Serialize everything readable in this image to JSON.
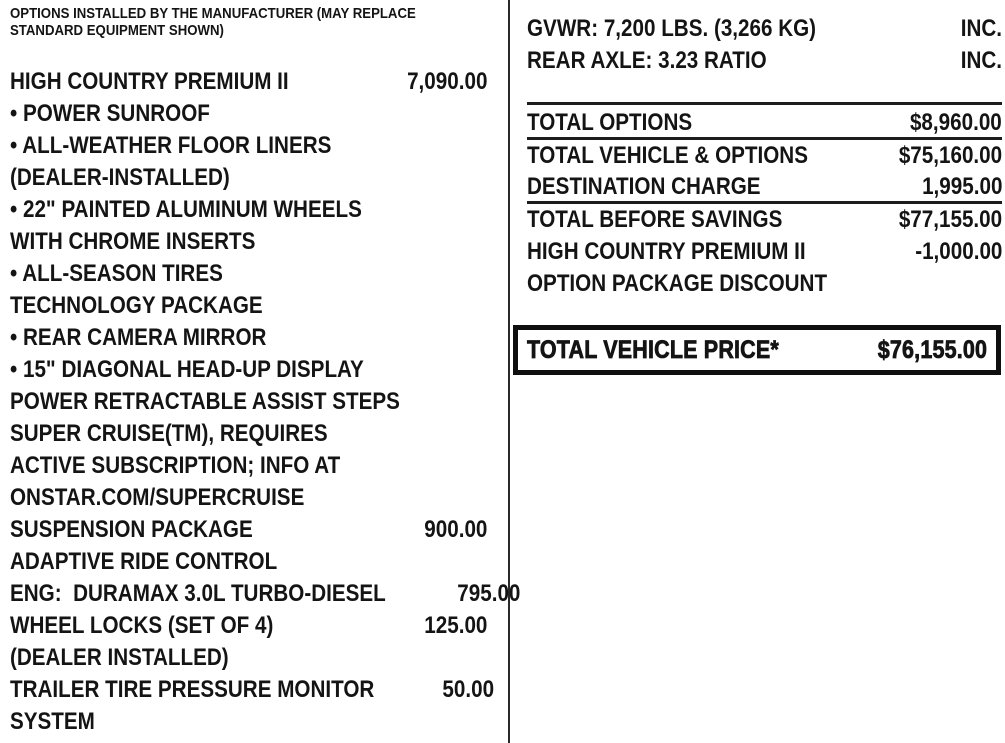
{
  "left_column": {
    "header_lines": [
      "OPTIONS INSTALLED BY THE MANUFACTURER (MAY REPLACE",
      "STANDARD EQUIPMENT SHOWN)"
    ],
    "options": [
      {
        "label": "HIGH COUNTRY PREMIUM II",
        "price": "7,090.00"
      },
      {
        "label": "• POWER SUNROOF",
        "price": ""
      },
      {
        "label": "• ALL-WEATHER FLOOR LINERS",
        "price": ""
      },
      {
        "label": "(DEALER-INSTALLED)",
        "price": ""
      },
      {
        "label": "• 22\" PAINTED ALUMINUM WHEELS",
        "price": ""
      },
      {
        "label": "WITH CHROME INSERTS",
        "price": ""
      },
      {
        "label": "• ALL-SEASON TIRES",
        "price": ""
      },
      {
        "label": "TECHNOLOGY PACKAGE",
        "price": ""
      },
      {
        "label": "• REAR CAMERA MIRROR",
        "price": ""
      },
      {
        "label": "• 15\" DIAGONAL HEAD-UP DISPLAY",
        "price": ""
      },
      {
        "label": "POWER RETRACTABLE ASSIST STEPS",
        "price": ""
      },
      {
        "label": "SUPER CRUISE(TM), REQUIRES",
        "price": ""
      },
      {
        "label": "ACTIVE SUBSCRIPTION; INFO AT",
        "price": ""
      },
      {
        "label": "ONSTAR.COM/SUPERCRUISE",
        "price": ""
      },
      {
        "label": "SUSPENSION PACKAGE",
        "price": "900.00"
      },
      {
        "label": "ADAPTIVE RIDE CONTROL",
        "price": ""
      },
      {
        "label": "ENG:  DURAMAX 3.0L TURBO-DIESEL",
        "price": "795.00"
      },
      {
        "label": "WHEEL LOCKS (SET OF 4)",
        "price": "125.00"
      },
      {
        "label": "(DEALER INSTALLED)",
        "price": ""
      },
      {
        "label": "TRAILER TIRE PRESSURE MONITOR",
        "price": "50.00"
      },
      {
        "label": "SYSTEM",
        "price": ""
      }
    ]
  },
  "right_column": {
    "specs": [
      {
        "label": "GVWR: 7,200 LBS. (3,266 KG)",
        "value": "INC."
      },
      {
        "label": "REAR AXLE: 3.23 RATIO",
        "value": "INC."
      }
    ],
    "totals": [
      {
        "label": "TOTAL OPTIONS",
        "value": "$8,960.00",
        "underline": true
      },
      {
        "label": "TOTAL VEHICLE & OPTIONS",
        "value": "$75,160.00",
        "underline": false
      },
      {
        "label": "DESTINATION CHARGE",
        "value": "1,995.00",
        "underline": true
      },
      {
        "label": "TOTAL BEFORE SAVINGS",
        "value": "$77,155.00",
        "underline": false
      },
      {
        "label": "HIGH COUNTRY PREMIUM II",
        "value": "-1,000.00",
        "underline": false
      },
      {
        "label": "OPTION PACKAGE DISCOUNT",
        "value": "",
        "underline": false
      }
    ],
    "total_price": {
      "label": "TOTAL VEHICLE PRICE*",
      "value": "$76,155.00"
    }
  },
  "colors": {
    "text": "#141414",
    "rule_line": "#1c1c1c",
    "box_border": "#0f0f0f",
    "background": "#ffffff"
  }
}
